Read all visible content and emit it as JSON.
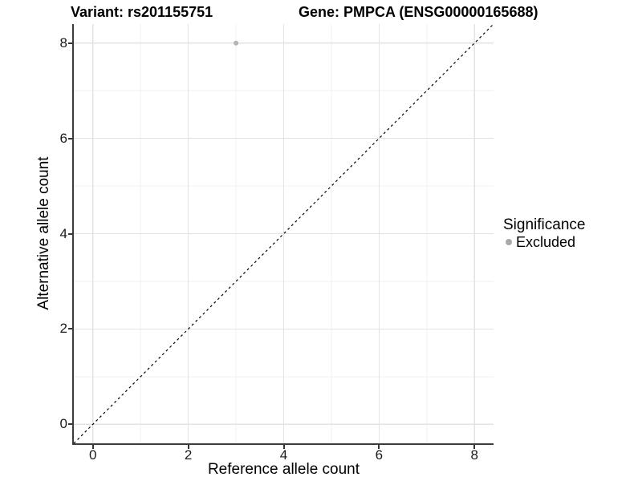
{
  "header": {
    "variant_title": "Variant: rs201155751",
    "gene_title": "Gene: PMPCA (ENSG00000165688)"
  },
  "legend": {
    "title": "Significance",
    "items": [
      {
        "label": "Excluded",
        "color": "#a9a9a9"
      }
    ]
  },
  "chart_data": {
    "type": "scatter",
    "titles": [
      "Variant: rs201155751",
      "Gene: PMPCA (ENSG00000165688)"
    ],
    "xlabel": "Reference allele count",
    "ylabel": "Alternative allele count",
    "xlim": [
      -0.4,
      8.4
    ],
    "ylim": [
      -0.4,
      8.4
    ],
    "x_ticks": [
      0,
      2,
      4,
      6,
      8
    ],
    "y_ticks": [
      0,
      2,
      4,
      6,
      8
    ],
    "x_minor_ticks": [
      1,
      3,
      5,
      7
    ],
    "y_minor_ticks": [
      1,
      3,
      5,
      7
    ],
    "grid": "major+minor",
    "legend_position": "right",
    "series": [
      {
        "name": "Excluded",
        "color": "#b3b3b3",
        "points": [
          {
            "x": 3,
            "y": 8
          }
        ]
      }
    ],
    "reference_line": {
      "kind": "identity y=x",
      "from": [
        -0.4,
        -0.4
      ],
      "to": [
        8.4,
        8.4
      ],
      "style": "dashed",
      "color": "#000000"
    }
  },
  "style": {
    "major_grid_color": "#e3e3e3",
    "minor_grid_color": "#f0f0f0",
    "axis_line_color": "#3c3c3c",
    "tick_color": "#333333",
    "point_radius": 3,
    "legend_dot_color": "#a9a9a9"
  }
}
